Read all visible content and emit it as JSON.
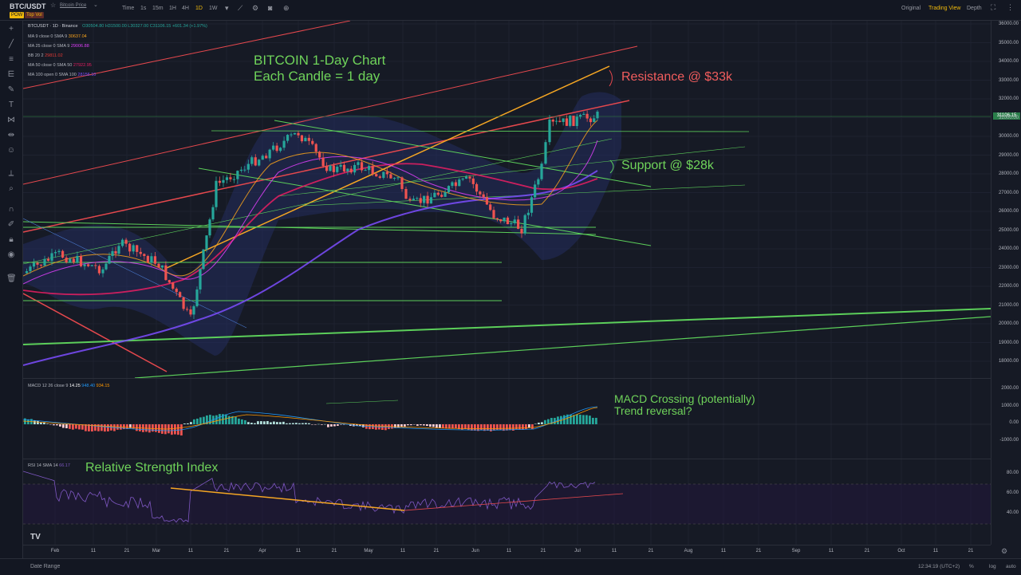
{
  "header": {
    "symbol": "BTC/USDT",
    "subtitle": "Bitcoin Price",
    "badge_pow": "POW",
    "badge_topvol": "Top Vol",
    "timeframes": [
      "Time",
      "1s",
      "15m",
      "1H",
      "4H",
      "1D",
      "1W"
    ],
    "active_timeframe": "1D",
    "views": [
      "Original",
      "Trading View",
      "Depth"
    ],
    "active_view": "Trading View"
  },
  "legend": {
    "ohlc_title": "BTCUSDT · 1D · Binance",
    "ohlc_values": "O30504.80 H31500.00 L30327.00 C31106.15 +601.34 (+1.97%)",
    "indicators": [
      {
        "label": "MA 9 close 0 SMA 9",
        "value": "30637.04",
        "color": "#f7a21b"
      },
      {
        "label": "MA 25 close 0 SMA 9",
        "value": "29006.88",
        "color": "#e040fb"
      },
      {
        "label": "BB 20 2",
        "value": "29811.02",
        "color": "#e53935"
      },
      {
        "label": "MA 50 close 0 SMA 50",
        "value": "27922.95",
        "color": "#e91e63"
      },
      {
        "label": "MA 100 open 0 SMA 100",
        "value": "28156.10",
        "color": "#7c4dff"
      }
    ]
  },
  "annotations": {
    "chart_title_line1": "BITCOIN 1-Day Chart",
    "chart_title_line2": "Each Candle = 1 day",
    "resistance": "Resistance @  $33k",
    "support": "Support @  $28k",
    "macd_line1": "MACD Crossing (potentially)",
    "macd_line2": "Trend reversal?",
    "rsi_title": "Relative Strength Index"
  },
  "price_axis": {
    "labels": [
      "36000.00",
      "35000.00",
      "34000.00",
      "33000.00",
      "32000.00",
      "31000.00",
      "30000.00",
      "29000.00",
      "28000.00",
      "27000.00",
      "26000.00",
      "25000.00",
      "24000.00",
      "23000.00",
      "22000.00",
      "21000.00",
      "20000.00",
      "19000.00",
      "18000.00"
    ],
    "current_price": "31106.15"
  },
  "macd": {
    "legend": "MACD 12 26 close 9",
    "values": [
      "14.25",
      "948.40",
      "934.15"
    ],
    "axis": [
      "2000.00",
      "1000.00",
      "0.00",
      "-1000.00"
    ]
  },
  "rsi": {
    "legend": "RSI 14 SMA 14",
    "value": "66.17",
    "axis": [
      "80.00",
      "60.00",
      "40.00"
    ]
  },
  "time_axis": [
    "Feb",
    "11",
    "21",
    "Mar",
    "11",
    "21",
    "Apr",
    "11",
    "21",
    "May",
    "11",
    "21",
    "Jun",
    "11",
    "21",
    "Jul",
    "11",
    "21",
    "Aug",
    "11",
    "21",
    "Sep",
    "11",
    "21",
    "Oct",
    "11",
    "21"
  ],
  "bottom": {
    "date_range": "Date Range",
    "clock": "12:34:19 (UTC+2)",
    "pct": "%",
    "log": "log",
    "auto": "auto"
  },
  "chart_data": {
    "type": "candlestick",
    "timeframe": "1D",
    "series_close": [
      {
        "x": "Jan 22",
        "y": 22700
      },
      {
        "x": "Feb 1",
        "y": 23700
      },
      {
        "x": "Feb 8",
        "y": 22900
      },
      {
        "x": "Feb 16",
        "y": 24300
      },
      {
        "x": "Feb 25",
        "y": 23200
      },
      {
        "x": "Mar 10",
        "y": 20200
      },
      {
        "x": "Mar 14",
        "y": 24600
      },
      {
        "x": "Mar 18",
        "y": 27400
      },
      {
        "x": "Apr 11",
        "y": 30200
      },
      {
        "x": "Apr 20",
        "y": 28200
      },
      {
        "x": "Apr 26",
        "y": 28400
      },
      {
        "x": "May 8",
        "y": 27700
      },
      {
        "x": "May 12",
        "y": 26300
      },
      {
        "x": "May 28",
        "y": 27700
      },
      {
        "x": "Jun 10",
        "y": 25800
      },
      {
        "x": "Jun 15",
        "y": 25100
      },
      {
        "x": "Jun 20",
        "y": 28300
      },
      {
        "x": "Jun 23",
        "y": 30600
      },
      {
        "x": "Jul 4",
        "y": 31100
      }
    ],
    "resistance_level": 33000,
    "support_level": 28000,
    "y_range": [
      17500,
      36500
    ],
    "macd_range": [
      -1200,
      2100
    ],
    "rsi_range": [
      25,
      85
    ]
  }
}
